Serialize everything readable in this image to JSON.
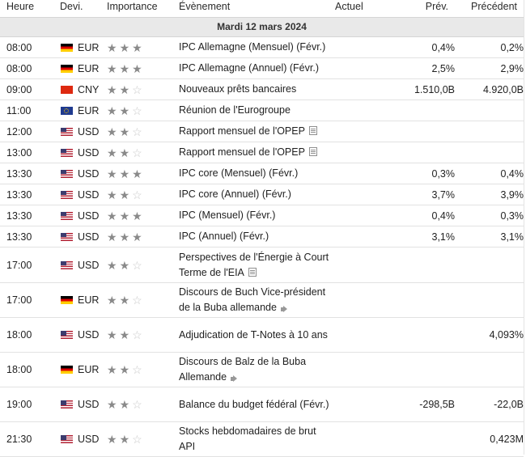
{
  "headers": {
    "time": "Heure",
    "currency": "Devi.",
    "importance": "Importance",
    "event": "Évènement",
    "actual": "Actuel",
    "forecast": "Prév.",
    "previous": "Précédent"
  },
  "day": "Mardi 12 mars 2024",
  "rows": [
    {
      "time": "08:00",
      "flag": "de",
      "currency": "EUR",
      "stars": 3,
      "event": "IPC Allemagne (Mensuel) (Févr.)",
      "icon": "",
      "actual": "",
      "forecast": "0,4%",
      "previous": "0,2%"
    },
    {
      "time": "08:00",
      "flag": "de",
      "currency": "EUR",
      "stars": 3,
      "event": "IPC Allemagne (Annuel) (Févr.)",
      "icon": "",
      "actual": "",
      "forecast": "2,5%",
      "previous": "2,9%"
    },
    {
      "time": "09:00",
      "flag": "cn",
      "currency": "CNY",
      "stars": 2,
      "event": "Nouveaux prêts bancaires",
      "icon": "",
      "actual": "",
      "forecast": "1.510,0B",
      "previous": "4.920,0B"
    },
    {
      "time": "11:00",
      "flag": "eu",
      "currency": "EUR",
      "stars": 2,
      "event": "Réunion de l'Eurogroupe",
      "icon": "",
      "actual": "",
      "forecast": "",
      "previous": ""
    },
    {
      "time": "12:00",
      "flag": "us",
      "currency": "USD",
      "stars": 2,
      "event": "Rapport mensuel de l'OPEP",
      "icon": "document-icon",
      "actual": "",
      "forecast": "",
      "previous": ""
    },
    {
      "time": "13:00",
      "flag": "us",
      "currency": "USD",
      "stars": 2,
      "event": "Rapport mensuel de l'OPEP",
      "icon": "document-icon",
      "actual": "",
      "forecast": "",
      "previous": ""
    },
    {
      "time": "13:30",
      "flag": "us",
      "currency": "USD",
      "stars": 3,
      "event": "IPC core (Mensuel) (Févr.)",
      "icon": "",
      "actual": "",
      "forecast": "0,3%",
      "previous": "0,4%"
    },
    {
      "time": "13:30",
      "flag": "us",
      "currency": "USD",
      "stars": 2,
      "event": "IPC core (Annuel) (Févr.)",
      "icon": "",
      "actual": "",
      "forecast": "3,7%",
      "previous": "3,9%"
    },
    {
      "time": "13:30",
      "flag": "us",
      "currency": "USD",
      "stars": 3,
      "event": "IPC (Mensuel) (Févr.)",
      "icon": "",
      "actual": "",
      "forecast": "0,4%",
      "previous": "0,3%"
    },
    {
      "time": "13:30",
      "flag": "us",
      "currency": "USD",
      "stars": 3,
      "event": "IPC (Annuel) (Févr.)",
      "icon": "",
      "actual": "",
      "forecast": "3,1%",
      "previous": "3,1%"
    },
    {
      "time": "17:00",
      "flag": "us",
      "currency": "USD",
      "stars": 2,
      "event": "Perspectives de l'Énergie à Court Terme de l'EIA",
      "icon": "document-icon",
      "actual": "",
      "forecast": "",
      "previous": ""
    },
    {
      "time": "17:00",
      "flag": "de",
      "currency": "EUR",
      "stars": 2,
      "event": "Discours de Buch Vice-président de la Buba allemande",
      "icon": "speaker-icon",
      "actual": "",
      "forecast": "",
      "previous": ""
    },
    {
      "time": "18:00",
      "flag": "us",
      "currency": "USD",
      "stars": 2,
      "event": "Adjudication de T-Notes à 10 ans",
      "icon": "",
      "actual": "",
      "forecast": "",
      "previous": "4,093%"
    },
    {
      "time": "18:00",
      "flag": "de",
      "currency": "EUR",
      "stars": 2,
      "event": "Discours de Balz de la Buba Allemande",
      "icon": "speaker-icon",
      "actual": "",
      "forecast": "",
      "previous": ""
    },
    {
      "time": "19:00",
      "flag": "us",
      "currency": "USD",
      "stars": 2,
      "event": "Balance du budget fédéral (Févr.)",
      "icon": "",
      "actual": "",
      "forecast": "-298,5B",
      "previous": "-22,0B"
    },
    {
      "time": "21:30",
      "flag": "us",
      "currency": "USD",
      "stars": 2,
      "event": "Stocks hebdomadaires de brut API",
      "icon": "",
      "actual": "",
      "forecast": "",
      "previous": "0,423M"
    }
  ]
}
